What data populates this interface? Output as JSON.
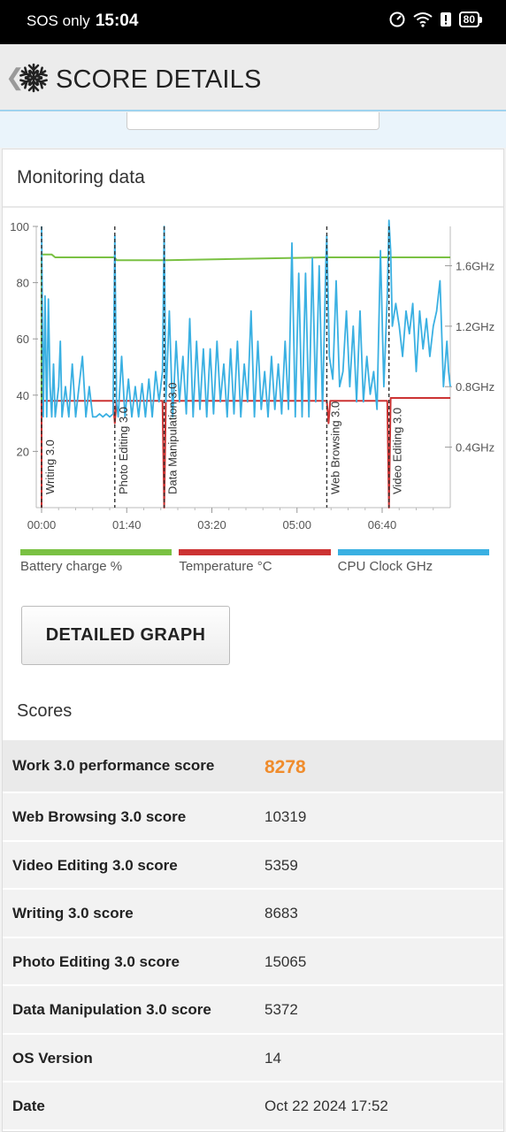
{
  "status_bar": {
    "carrier": "SOS only",
    "time": "15:04",
    "battery": "80"
  },
  "header": {
    "title": "SCORE DETAILS",
    "icon": "snowflake-icon",
    "back_icon": "chevron-left-icon"
  },
  "monitoring": {
    "title": "Monitoring data",
    "button_label": "DETAILED GRAPH",
    "legend": [
      {
        "label": "Battery charge %",
        "color": "#7ac143"
      },
      {
        "label": "Temperature °C",
        "color": "#cc3333"
      },
      {
        "label": "CPU Clock GHz",
        "color": "#3ab0e2"
      }
    ]
  },
  "chart_data": {
    "type": "line",
    "x_ticks": [
      "00:00",
      "01:40",
      "03:20",
      "05:00",
      "06:40"
    ],
    "x_range_minutes": [
      0,
      480
    ],
    "y_left_ticks": [
      "20",
      "40",
      "60",
      "80",
      "100"
    ],
    "y_left_range": [
      0,
      100
    ],
    "y_right_ticks": [
      "0.4GHz",
      "0.8GHz",
      "1.2GHz",
      "1.6GHz"
    ],
    "y_right_range_ghz": [
      0,
      1.86
    ],
    "markers": [
      {
        "label": "Writing 3.0",
        "t": 0
      },
      {
        "label": "Photo Editing 3.0",
        "t": 86
      },
      {
        "label": "Data Manipulation 3.0",
        "t": 144
      },
      {
        "label": "Web Browsing 3.0",
        "t": 335
      },
      {
        "label": "Video Editing 3.0",
        "t": 408
      }
    ],
    "series": [
      {
        "name": "Battery charge %",
        "axis": "left",
        "points": [
          [
            0,
            0
          ],
          [
            0,
            90
          ],
          [
            12,
            90
          ],
          [
            16,
            89
          ],
          [
            86,
            89
          ],
          [
            88,
            88
          ],
          [
            144,
            88
          ],
          [
            146,
            88
          ],
          [
            335,
            89
          ],
          [
            480,
            89
          ]
        ]
      },
      {
        "name": "Temperature °C",
        "axis": "left",
        "points": [
          [
            0,
            0
          ],
          [
            0,
            38
          ],
          [
            84,
            38
          ],
          [
            86,
            30
          ],
          [
            88,
            38
          ],
          [
            142,
            38
          ],
          [
            144,
            0
          ],
          [
            146,
            38
          ],
          [
            335,
            38
          ],
          [
            337,
            30
          ],
          [
            339,
            38
          ],
          [
            406,
            38
          ],
          [
            408,
            0
          ],
          [
            410,
            39
          ],
          [
            480,
            39
          ]
        ]
      },
      {
        "name": "CPU Clock GHz",
        "axis": "right",
        "points": [
          [
            0,
            1.86
          ],
          [
            2,
            0.6
          ],
          [
            4,
            1.4
          ],
          [
            6,
            0.6
          ],
          [
            8,
            1.38
          ],
          [
            10,
            0.8
          ],
          [
            12,
            0.6
          ],
          [
            14,
            0.95
          ],
          [
            16,
            0.6
          ],
          [
            20,
            0.8
          ],
          [
            22,
            1.1
          ],
          [
            24,
            0.6
          ],
          [
            28,
            0.8
          ],
          [
            32,
            0.6
          ],
          [
            36,
            0.95
          ],
          [
            40,
            0.6
          ],
          [
            44,
            0.8
          ],
          [
            48,
            1.0
          ],
          [
            52,
            0.6
          ],
          [
            56,
            0.8
          ],
          [
            60,
            0.6
          ],
          [
            64,
            0.6
          ],
          [
            68,
            0.62
          ],
          [
            72,
            0.6
          ],
          [
            76,
            0.62
          ],
          [
            80,
            0.6
          ],
          [
            84,
            0.62
          ],
          [
            86,
            1.8
          ],
          [
            88,
            0.7
          ],
          [
            90,
            0.6
          ],
          [
            94,
            1.0
          ],
          [
            98,
            0.6
          ],
          [
            102,
            0.85
          ],
          [
            106,
            0.6
          ],
          [
            110,
            0.8
          ],
          [
            114,
            0.6
          ],
          [
            118,
            0.82
          ],
          [
            122,
            0.6
          ],
          [
            126,
            0.85
          ],
          [
            130,
            0.6
          ],
          [
            134,
            0.9
          ],
          [
            138,
            0.7
          ],
          [
            142,
            0.9
          ],
          [
            144,
            1.86
          ],
          [
            146,
            0.7
          ],
          [
            150,
            1.3
          ],
          [
            154,
            0.6
          ],
          [
            158,
            1.1
          ],
          [
            162,
            0.7
          ],
          [
            166,
            1.0
          ],
          [
            170,
            0.62
          ],
          [
            174,
            1.25
          ],
          [
            178,
            0.6
          ],
          [
            182,
            1.1
          ],
          [
            186,
            0.65
          ],
          [
            190,
            1.05
          ],
          [
            194,
            0.6
          ],
          [
            198,
            1.05
          ],
          [
            202,
            0.62
          ],
          [
            206,
            1.1
          ],
          [
            210,
            0.7
          ],
          [
            214,
            0.95
          ],
          [
            218,
            0.6
          ],
          [
            222,
            1.05
          ],
          [
            226,
            0.62
          ],
          [
            230,
            1.1
          ],
          [
            234,
            0.6
          ],
          [
            238,
            0.95
          ],
          [
            242,
            0.7
          ],
          [
            246,
            1.3
          ],
          [
            250,
            0.6
          ],
          [
            254,
            1.1
          ],
          [
            258,
            0.65
          ],
          [
            262,
            0.9
          ],
          [
            266,
            0.6
          ],
          [
            270,
            1.0
          ],
          [
            274,
            0.65
          ],
          [
            278,
            0.95
          ],
          [
            282,
            0.62
          ],
          [
            286,
            1.1
          ],
          [
            290,
            0.65
          ],
          [
            294,
            1.75
          ],
          [
            298,
            0.6
          ],
          [
            302,
            1.55
          ],
          [
            306,
            0.6
          ],
          [
            310,
            1.55
          ],
          [
            314,
            0.6
          ],
          [
            318,
            1.65
          ],
          [
            322,
            0.7
          ],
          [
            326,
            1.6
          ],
          [
            330,
            0.65
          ],
          [
            334,
            1.65
          ],
          [
            335,
            1.8
          ],
          [
            338,
            1.0
          ],
          [
            342,
            0.85
          ],
          [
            346,
            1.5
          ],
          [
            350,
            0.8
          ],
          [
            354,
            0.9
          ],
          [
            358,
            1.3
          ],
          [
            362,
            0.8
          ],
          [
            366,
            1.2
          ],
          [
            370,
            0.7
          ],
          [
            374,
            1.3
          ],
          [
            378,
            0.7
          ],
          [
            382,
            1.0
          ],
          [
            386,
            0.75
          ],
          [
            390,
            0.9
          ],
          [
            394,
            0.65
          ],
          [
            398,
            1.7
          ],
          [
            402,
            0.8
          ],
          [
            406,
            1.4
          ],
          [
            408,
            1.9
          ],
          [
            410,
            1.7
          ],
          [
            412,
            1.2
          ],
          [
            416,
            1.35
          ],
          [
            420,
            1.2
          ],
          [
            424,
            1.0
          ],
          [
            428,
            1.3
          ],
          [
            432,
            1.15
          ],
          [
            436,
            1.35
          ],
          [
            440,
            0.9
          ],
          [
            444,
            1.3
          ],
          [
            448,
            1.05
          ],
          [
            452,
            1.25
          ],
          [
            456,
            1.0
          ],
          [
            460,
            1.2
          ],
          [
            464,
            1.3
          ],
          [
            468,
            1.5
          ],
          [
            472,
            0.8
          ],
          [
            476,
            1.1
          ],
          [
            478,
            0.9
          ],
          [
            480,
            0.8
          ]
        ]
      }
    ]
  },
  "scores": {
    "title": "Scores",
    "rows": [
      {
        "label": "Work 3.0 performance score",
        "value": "8278"
      },
      {
        "label": "Web Browsing 3.0 score",
        "value": "10319"
      },
      {
        "label": "Video Editing 3.0 score",
        "value": "5359"
      },
      {
        "label": "Writing 3.0 score",
        "value": "8683"
      },
      {
        "label": "Photo Editing 3.0 score",
        "value": "15065"
      },
      {
        "label": "Data Manipulation 3.0 score",
        "value": "5372"
      },
      {
        "label": "OS Version",
        "value": "14"
      },
      {
        "label": "Date",
        "value": "Oct 22 2024 17:52"
      }
    ]
  }
}
